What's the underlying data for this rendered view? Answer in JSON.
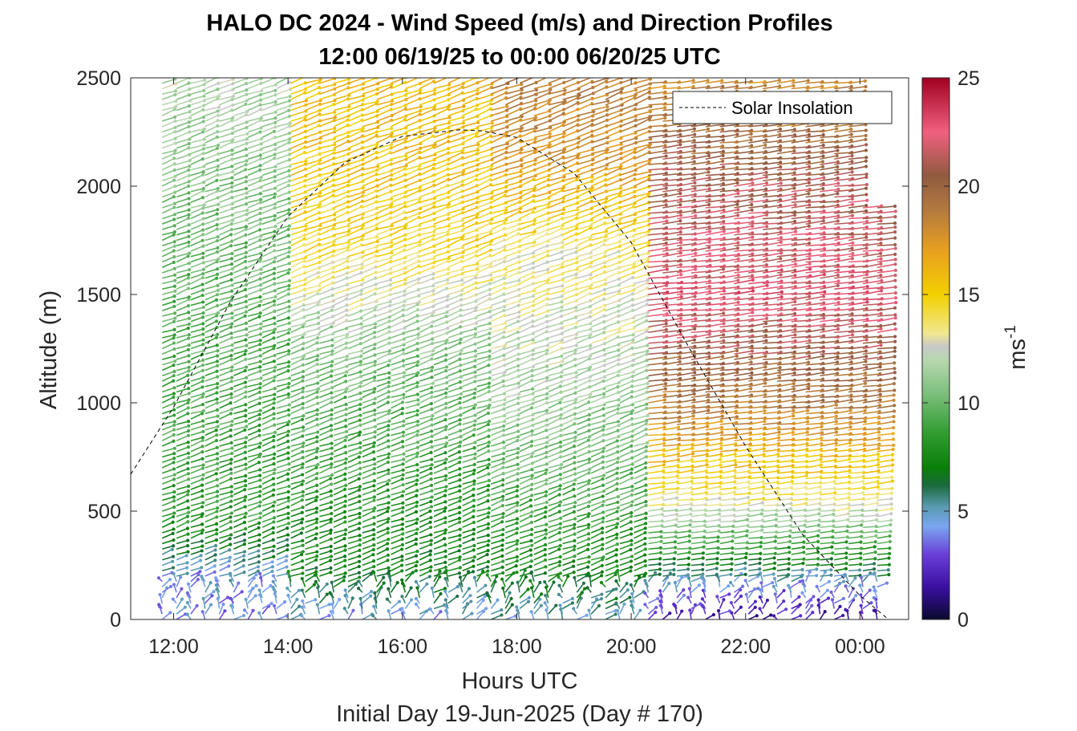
{
  "chart_data": {
    "type": "wind-barb-profile",
    "title": "HALO DC 2024 - Wind Speed (m/s) and Direction Profiles",
    "subtitle": "12:00 06/19/25 to 00:00 06/20/25  UTC",
    "xlabel": "Hours UTC",
    "xlabel2": "Initial Day 19-Jun-2025 (Day # 170)",
    "ylabel": "Altitude (m)",
    "xlim": [
      11.25,
      24.85
    ],
    "ylim": [
      0,
      2500
    ],
    "x_ticks": [
      12,
      14,
      16,
      18,
      20,
      22,
      24
    ],
    "x_tick_labels": [
      "12:00",
      "14:00",
      "16:00",
      "18:00",
      "20:00",
      "22:00",
      "00:00"
    ],
    "y_ticks": [
      0,
      500,
      1000,
      1500,
      2000,
      2500
    ],
    "y_tick_labels": [
      "0",
      "500",
      "1000",
      "1500",
      "2000",
      "2500"
    ],
    "colorbar": {
      "label": "ms",
      "label_sup": "-1",
      "range": [
        0,
        25
      ],
      "ticks": [
        0,
        5,
        10,
        15,
        20,
        25
      ],
      "tick_labels": [
        "0",
        "5",
        "10",
        "15",
        "20",
        "25"
      ],
      "colors": [
        {
          "v": 0,
          "c": "#0a0a30"
        },
        {
          "v": 1.5,
          "c": "#3a0fa0"
        },
        {
          "v": 3,
          "c": "#6a3fd8"
        },
        {
          "v": 4.3,
          "c": "#7aa6f0"
        },
        {
          "v": 5.2,
          "c": "#5a9ab0"
        },
        {
          "v": 6.2,
          "c": "#1a6a3a"
        },
        {
          "v": 7,
          "c": "#0a7f0a"
        },
        {
          "v": 8.5,
          "c": "#2e9a2e"
        },
        {
          "v": 10.5,
          "c": "#7fc07f"
        },
        {
          "v": 12,
          "c": "#b8d8b0"
        },
        {
          "v": 12.6,
          "c": "#c8c8c8"
        },
        {
          "v": 13.2,
          "c": "#f0e890"
        },
        {
          "v": 15,
          "c": "#f2d000"
        },
        {
          "v": 17,
          "c": "#e8a020"
        },
        {
          "v": 19,
          "c": "#b07840"
        },
        {
          "v": 20.5,
          "c": "#905a40"
        },
        {
          "v": 22.5,
          "c": "#f06080"
        },
        {
          "v": 25,
          "c": "#a00020"
        }
      ]
    },
    "legend": {
      "entries": [
        "Solar Insolation"
      ],
      "location": "top-right",
      "line_style": "dashed"
    },
    "series": [
      {
        "name": "Solar Insolation",
        "type": "line",
        "x": [
          11.25,
          12.0,
          13.0,
          14.0,
          15.0,
          16.0,
          17.0,
          17.4,
          18.0,
          19.0,
          20.0,
          21.0,
          22.0,
          23.0,
          24.0,
          24.5,
          24.85
        ],
        "y": [
          670,
          980,
          1470,
          1860,
          2110,
          2230,
          2260,
          2255,
          2225,
          2060,
          1740,
          1260,
          800,
          390,
          110,
          0,
          0
        ]
      }
    ],
    "wind_field": {
      "x_start": 11.8,
      "x_end": 24.3,
      "x_step": 0.25,
      "altitude_step": 25,
      "profiles": [
        {
          "x_range": [
            11.8,
            14.0
          ],
          "speed_by_altitude": [
            [
              0,
              4
            ],
            [
              200,
              4.5
            ],
            [
              450,
              8.5
            ],
            [
              1300,
              9.5
            ],
            [
              2000,
              10.5
            ],
            [
              2500,
              12
            ]
          ]
        },
        {
          "x_range": [
            14.0,
            17.5
          ],
          "speed_by_altitude": [
            [
              0,
              4.5
            ],
            [
              200,
              7
            ],
            [
              600,
              8.5
            ],
            [
              1200,
              10.5
            ],
            [
              1700,
              14.5
            ],
            [
              2100,
              15.5
            ],
            [
              2500,
              16
            ]
          ]
        },
        {
          "x_range": [
            17.5,
            20.1
          ],
          "speed_by_altitude": [
            [
              0,
              5
            ],
            [
              200,
              7.5
            ],
            [
              600,
              9.5
            ],
            [
              1200,
              12
            ],
            [
              1700,
              13.5
            ],
            [
              2100,
              17.5
            ],
            [
              2500,
              19
            ]
          ]
        },
        {
          "x_range": [
            20.1,
            24.3
          ],
          "speed_by_altitude": [
            [
              0,
              2
            ],
            [
              150,
              4.5
            ],
            [
              300,
              8
            ],
            [
              550,
              13.5
            ],
            [
              1000,
              19
            ],
            [
              1500,
              22.5
            ],
            [
              2000,
              21
            ],
            [
              2500,
              18
            ]
          ]
        }
      ]
    }
  }
}
